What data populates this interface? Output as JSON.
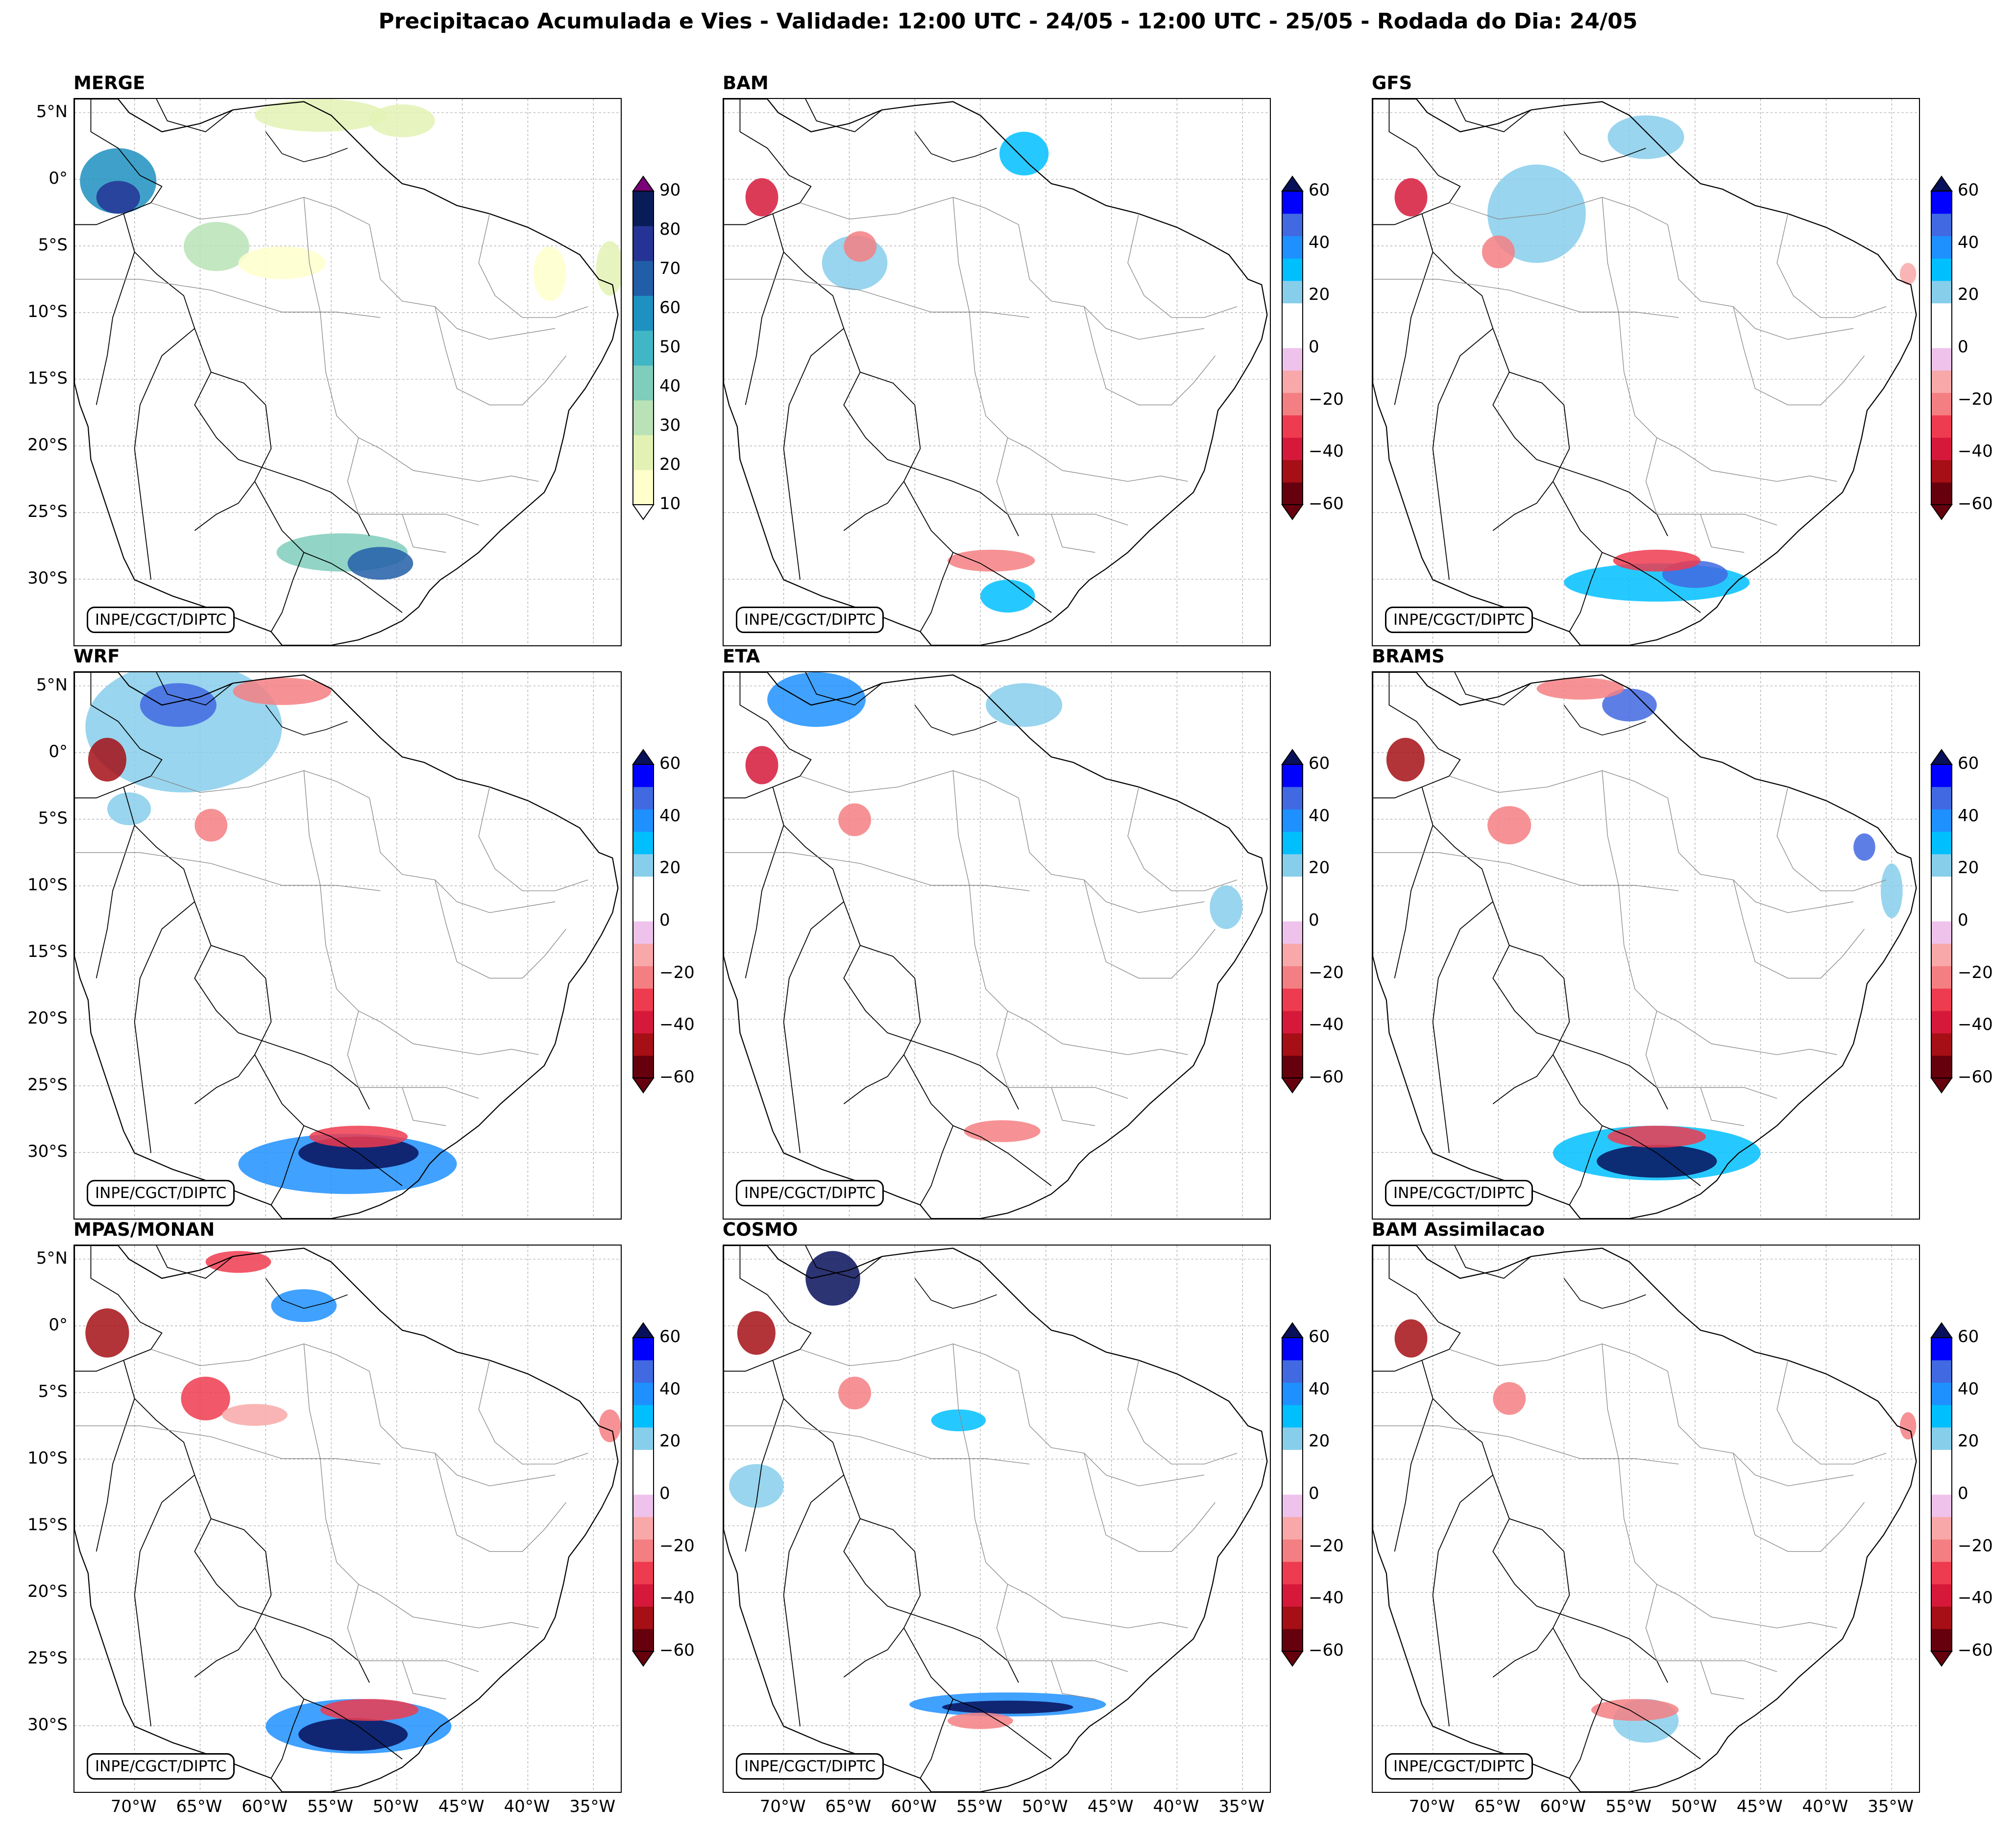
{
  "title": "Precipitacao Acumulada e Vies - Validade: 12:00 UTC - 24/05 - 12:00 UTC - 25/05 - Rodada do Dia: 24/05",
  "credit": "INPE/CGCT/DIPTC",
  "lat_ticks": [
    "5°N",
    "0°",
    "5°S",
    "10°S",
    "15°S",
    "20°S",
    "25°S",
    "30°S"
  ],
  "lon_ticks": [
    "70°W",
    "65°W",
    "60°W",
    "55°W",
    "50°W",
    "45°W",
    "40°W",
    "35°W"
  ],
  "panels": [
    {
      "id": "merge",
      "title": "MERGE"
    },
    {
      "id": "bam",
      "title": "BAM"
    },
    {
      "id": "gfs",
      "title": "GFS"
    },
    {
      "id": "wrf",
      "title": "WRF"
    },
    {
      "id": "eta",
      "title": "ETA"
    },
    {
      "id": "brams",
      "title": "BRAMS"
    },
    {
      "id": "mpas",
      "title": "MPAS/MONAN"
    },
    {
      "id": "cosmo",
      "title": "COSMO"
    },
    {
      "id": "bamassim",
      "title": "BAM Assimilacao"
    }
  ],
  "colorbar_precip": {
    "ticks": [
      "90",
      "80",
      "70",
      "60",
      "50",
      "40",
      "30",
      "20",
      "10"
    ],
    "colors": [
      "#ffffcc",
      "#e3f2b4",
      "#b9e3b6",
      "#7fcdbb",
      "#41b6c4",
      "#1d91c0",
      "#225ea8",
      "#253494",
      "#081d58"
    ],
    "extend_min_color": "#ffffff",
    "extend_max_color": "#7a0177"
  },
  "colorbar_bias": {
    "ticks": [
      "60",
      "40",
      "20",
      "0",
      "−20",
      "−40",
      "−60"
    ],
    "colors": [
      "#67000d",
      "#a50f15",
      "#d6193b",
      "#ef3b4f",
      "#f47f82",
      "#f8a8a8",
      "#eec2ea",
      "#ffffff",
      "#ffffff",
      "#87ceeb",
      "#00bfff",
      "#1e90ff",
      "#4169e1",
      "#0000ff"
    ],
    "extend_min_color": "#67000d",
    "extend_max_color": "#08105a"
  }
}
